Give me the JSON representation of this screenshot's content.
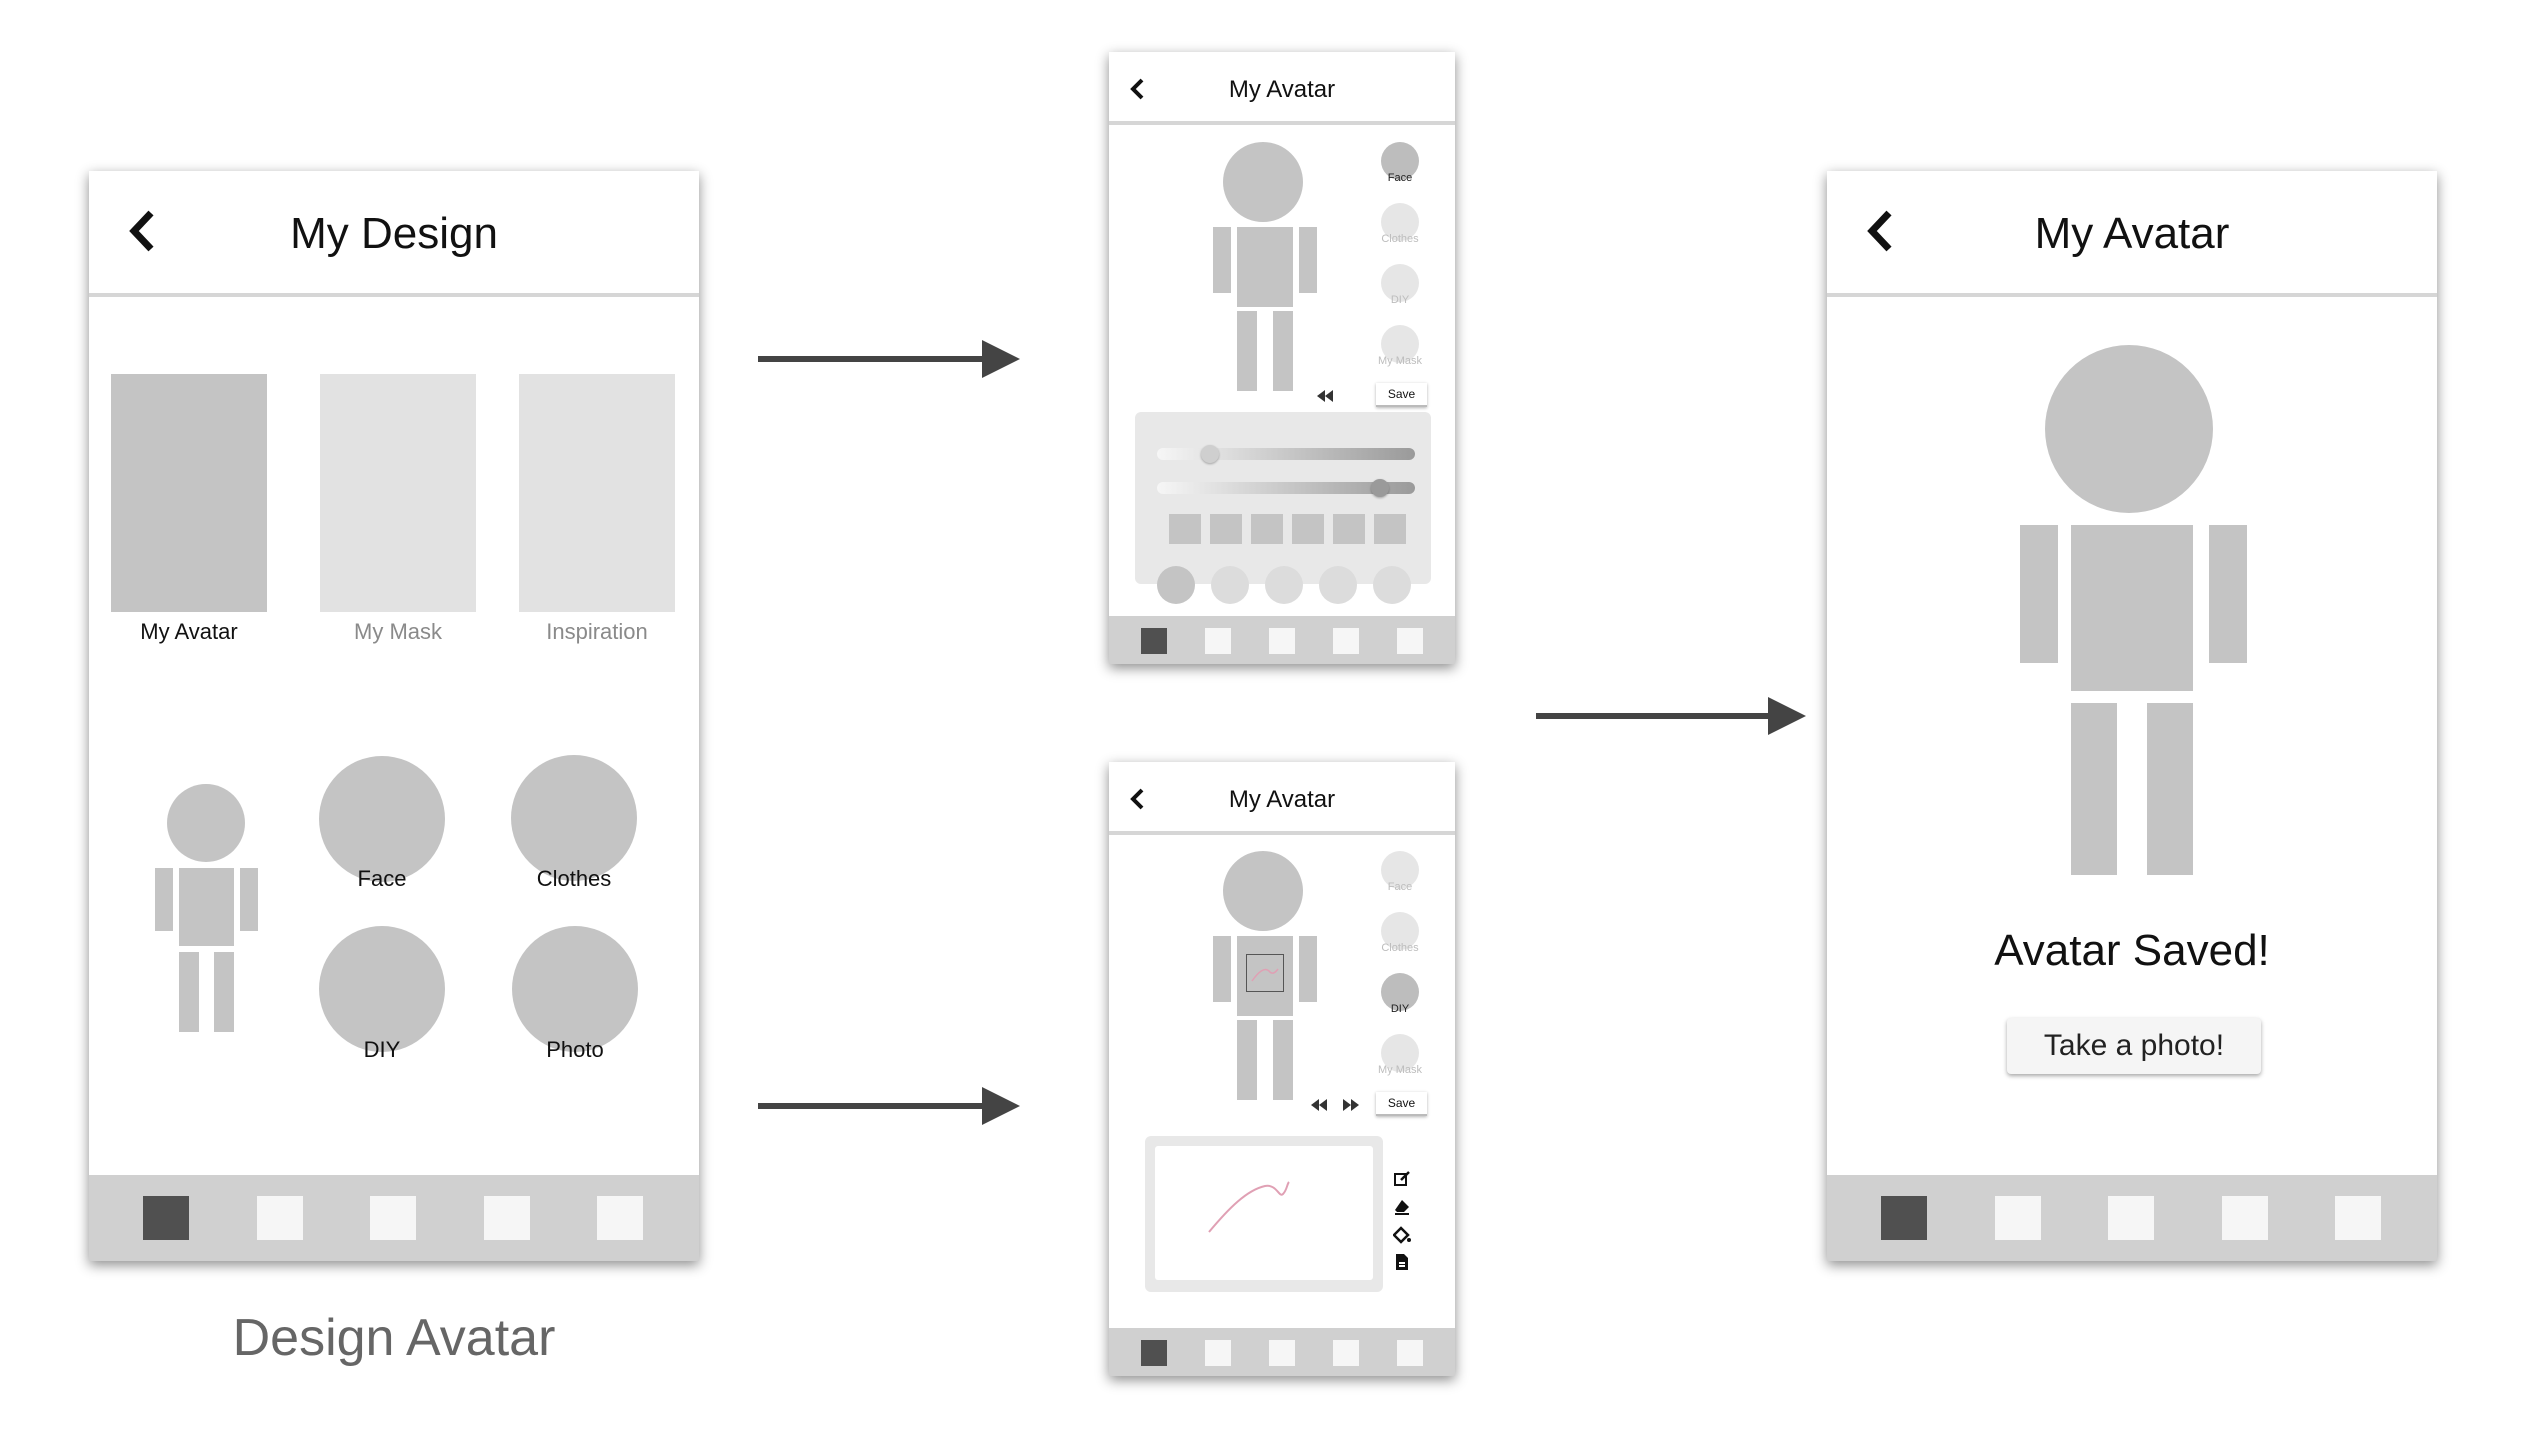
{
  "screen1": {
    "title": "My Design",
    "cards": [
      {
        "label": "My Avatar"
      },
      {
        "label": "My Mask"
      },
      {
        "label": "Inspiration"
      }
    ],
    "options": [
      {
        "label": "Face"
      },
      {
        "label": "Clothes"
      },
      {
        "label": "DIY"
      },
      {
        "label": "Photo"
      }
    ],
    "caption": "Design Avatar"
  },
  "screen2": {
    "title": "My Avatar",
    "side": [
      "Face",
      "Clothes",
      "DIY",
      "My Mask"
    ],
    "save": "Save"
  },
  "screen3": {
    "title": "My Avatar",
    "side": [
      "Face",
      "Clothes",
      "DIY",
      "My Mask"
    ],
    "save": "Save"
  },
  "screen4": {
    "title": "My Avatar",
    "message": "Avatar Saved!",
    "button": "Take a photo!"
  },
  "icons": {
    "back": "chevron-left-icon",
    "rewind": "rewind-icon",
    "forward": "fast-forward-icon",
    "edit": "edit-icon",
    "eraser": "eraser-icon",
    "fill": "paint-bucket-icon",
    "file": "file-icon"
  },
  "colors": {
    "placeholder": "#c4c4c4",
    "placeholder_light": "#e2e2e2",
    "tab_active": "#505050",
    "tab_bar": "#d0d0d0",
    "arrow": "#444444",
    "stroke": "#e0a0b4"
  }
}
